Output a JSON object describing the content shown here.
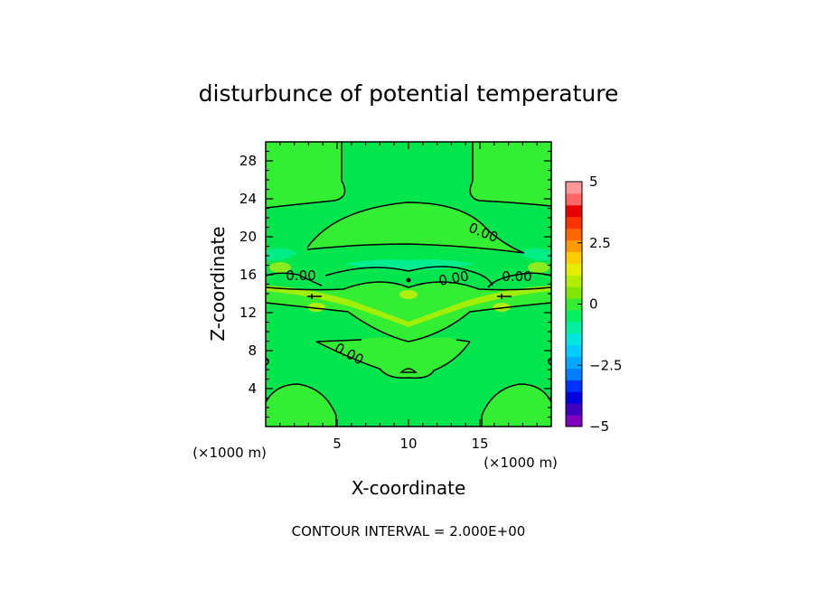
{
  "chart_data": {
    "type": "heatmap",
    "title": "disturbunce of potential temperature",
    "xlabel": "X-coordinate",
    "ylabel": "Z-coordinate",
    "x_unit": "(×1000 m)",
    "y_unit": "(×1000 m)",
    "xlim": [
      0,
      20
    ],
    "ylim": [
      0,
      30
    ],
    "x_ticks": [
      5,
      10,
      15
    ],
    "y_ticks": [
      4,
      8,
      12,
      16,
      20,
      24,
      28
    ],
    "contour_labels": [
      "0.00",
      "0.00",
      "0.00",
      "0.00",
      "0.00"
    ],
    "footer": "CONTOUR INTERVAL = 2.000E+00",
    "colorbar": {
      "range": [
        -5,
        5
      ],
      "tick_values": [
        5,
        2.5,
        0,
        -2.5,
        -5
      ],
      "tick_labels": [
        "5",
        "2.5",
        "0",
        "−2.5",
        "−5"
      ],
      "colors": [
        "#7f00bf",
        "#3f00bf",
        "#0000dd",
        "#0033ff",
        "#0080ff",
        "#00a8ff",
        "#00ccff",
        "#00e5e0",
        "#00f0a0",
        "#00f060",
        "#33ee33",
        "#80e600",
        "#b3ee00",
        "#e6ee00",
        "#ffcc00",
        "#ff9900",
        "#ff6600",
        "#ff3300",
        "#e60000",
        "#ff6666",
        "#ff9999"
      ]
    }
  }
}
